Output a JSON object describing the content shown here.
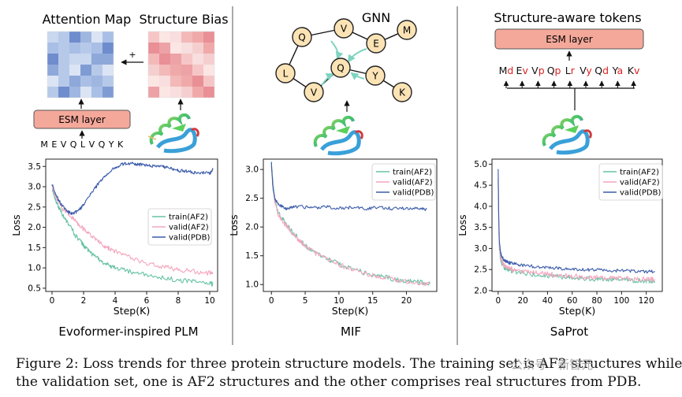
{
  "panels": [
    {
      "diagram": {
        "attention_title": "Attention Map",
        "bias_title": "Structure Bias",
        "plus": "+",
        "layer": "ESM layer",
        "sequence": "M E V Q L V Q Y K"
      },
      "panel_label": "Evoformer-inspired PLM"
    },
    {
      "diagram": {
        "title": "GNN",
        "nodes": [
          "Q",
          "V",
          "E",
          "M",
          "L",
          "Q",
          "Y",
          "V",
          "K"
        ]
      },
      "panel_label": "MIF"
    },
    {
      "diagram": {
        "title": "Structure-aware tokens",
        "layer": "ESM layer",
        "tokens": [
          {
            "aa": "M",
            "ss": "d"
          },
          {
            "aa": "E",
            "ss": "v"
          },
          {
            "aa": "V",
            "ss": "p"
          },
          {
            "aa": "Q",
            "ss": "p"
          },
          {
            "aa": "L",
            "ss": "r"
          },
          {
            "aa": "V",
            "ss": "y"
          },
          {
            "aa": "Q",
            "ss": "d"
          },
          {
            "aa": "Y",
            "ss": "a"
          },
          {
            "aa": "K",
            "ss": "v"
          }
        ]
      },
      "panel_label": "SaProt"
    }
  ],
  "chart_data": [
    {
      "type": "line",
      "xlabel": "Step(K)",
      "ylabel": "Loss",
      "xlim": [
        -0.4,
        10.5
      ],
      "ylim": [
        0.42,
        3.68
      ],
      "xticks": [
        0,
        2,
        4,
        6,
        8,
        10
      ],
      "yticks": [
        0.5,
        1.0,
        1.5,
        2.0,
        2.5,
        3.0,
        3.5
      ],
      "legend_position": "center-right",
      "grid": false,
      "series": [
        {
          "name": "train(AF2)",
          "color": "#66c2a5",
          "x": [
            0,
            0.3,
            0.6,
            1,
            1.5,
            2,
            2.5,
            3,
            3.5,
            4,
            5,
            6,
            7,
            8,
            9,
            10,
            10.2
          ],
          "y": [
            2.95,
            2.6,
            2.35,
            2.1,
            1.8,
            1.55,
            1.35,
            1.2,
            1.08,
            1.0,
            0.9,
            0.82,
            0.76,
            0.7,
            0.66,
            0.62,
            0.6
          ]
        },
        {
          "name": "valid(AF2)",
          "color": "#f4a6bd",
          "x": [
            0,
            0.3,
            0.6,
            1,
            1.5,
            2,
            2.5,
            3,
            3.5,
            4,
            5,
            6,
            7,
            8,
            9,
            10,
            10.2
          ],
          "y": [
            3.0,
            2.7,
            2.5,
            2.35,
            2.15,
            1.95,
            1.78,
            1.62,
            1.5,
            1.4,
            1.25,
            1.12,
            1.03,
            0.96,
            0.91,
            0.87,
            0.86
          ]
        },
        {
          "name": "valid(PDB)",
          "color": "#3b5bab",
          "x": [
            0,
            0.3,
            0.6,
            1,
            1.3,
            1.7,
            2,
            2.5,
            3,
            3.5,
            4,
            4.5,
            5,
            5.5,
            6,
            6.5,
            7,
            7.5,
            8,
            8.5,
            9,
            9.5,
            10,
            10.2
          ],
          "y": [
            3.05,
            2.75,
            2.55,
            2.38,
            2.33,
            2.42,
            2.55,
            2.85,
            3.1,
            3.3,
            3.48,
            3.56,
            3.58,
            3.55,
            3.52,
            3.5,
            3.5,
            3.45,
            3.4,
            3.38,
            3.35,
            3.35,
            3.33,
            3.42
          ]
        }
      ]
    },
    {
      "type": "line",
      "xlabel": "Step(K)",
      "ylabel": "Loss",
      "xlim": [
        -1.2,
        24.5
      ],
      "ylim": [
        0.88,
        3.18
      ],
      "xticks": [
        0,
        5,
        10,
        15,
        20
      ],
      "yticks": [
        1.0,
        1.5,
        2.0,
        2.5,
        3.0
      ],
      "legend_position": "top-right",
      "grid": false,
      "series": [
        {
          "name": "train(AF2)",
          "color": "#66c2a5",
          "x": [
            0,
            0.2,
            0.5,
            1,
            2,
            3,
            4,
            5,
            6,
            8,
            10,
            12,
            14,
            16,
            18,
            20,
            22,
            23.5
          ],
          "y": [
            3.1,
            2.8,
            2.45,
            2.25,
            2.08,
            1.92,
            1.8,
            1.68,
            1.6,
            1.46,
            1.36,
            1.27,
            1.2,
            1.15,
            1.1,
            1.06,
            1.04,
            1.02
          ]
        },
        {
          "name": "valid(AF2)",
          "color": "#f4a6bd",
          "x": [
            0,
            0.2,
            0.5,
            1,
            2,
            3,
            4,
            5,
            6,
            8,
            10,
            12,
            14,
            16,
            18,
            20,
            22,
            23.5
          ],
          "y": [
            3.05,
            2.75,
            2.42,
            2.22,
            2.05,
            1.9,
            1.78,
            1.67,
            1.58,
            1.45,
            1.35,
            1.26,
            1.19,
            1.14,
            1.09,
            1.05,
            1.03,
            1.01
          ]
        },
        {
          "name": "valid(PDB)",
          "color": "#3b5bab",
          "x": [
            0,
            0.2,
            0.5,
            1,
            2,
            3,
            4,
            6,
            8,
            10,
            12,
            14,
            16,
            18,
            20,
            22,
            23
          ],
          "y": [
            3.1,
            2.7,
            2.5,
            2.4,
            2.32,
            2.34,
            2.36,
            2.33,
            2.35,
            2.33,
            2.34,
            2.32,
            2.34,
            2.32,
            2.33,
            2.31,
            2.31
          ]
        }
      ]
    },
    {
      "type": "line",
      "xlabel": "Step(K)",
      "ylabel": "Loss",
      "xlim": [
        -5,
        133
      ],
      "ylim": [
        1.98,
        5.12
      ],
      "xticks": [
        0,
        20,
        40,
        60,
        80,
        100,
        120
      ],
      "yticks": [
        2.0,
        2.5,
        3.0,
        3.5,
        4.0,
        4.5,
        5.0
      ],
      "legend_position": "top-right",
      "grid": false,
      "series": [
        {
          "name": "train(AF2)",
          "color": "#66c2a5",
          "x": [
            0,
            0.5,
            1,
            2,
            3,
            5,
            8,
            12,
            20,
            30,
            40,
            50,
            60,
            70,
            80,
            90,
            100,
            110,
            120,
            127
          ],
          "y": [
            4.6,
            3.5,
            3.0,
            2.75,
            2.65,
            2.55,
            2.5,
            2.46,
            2.42,
            2.38,
            2.35,
            2.33,
            2.31,
            2.29,
            2.27,
            2.26,
            2.25,
            2.24,
            2.23,
            2.22
          ]
        },
        {
          "name": "valid(AF2)",
          "color": "#f4a6bd",
          "x": [
            0,
            0.5,
            1,
            2,
            3,
            5,
            8,
            12,
            20,
            30,
            40,
            50,
            60,
            70,
            80,
            90,
            100,
            110,
            120,
            127
          ],
          "y": [
            4.7,
            3.55,
            3.05,
            2.8,
            2.7,
            2.6,
            2.54,
            2.5,
            2.46,
            2.42,
            2.39,
            2.36,
            2.34,
            2.32,
            2.31,
            2.3,
            2.29,
            2.28,
            2.27,
            2.27
          ]
        },
        {
          "name": "valid(PDB)",
          "color": "#3b5bab",
          "x": [
            0,
            0.5,
            1,
            2,
            3,
            5,
            8,
            12,
            20,
            30,
            40,
            50,
            60,
            70,
            80,
            90,
            100,
            110,
            120,
            127
          ],
          "y": [
            4.9,
            3.7,
            3.15,
            2.9,
            2.8,
            2.72,
            2.67,
            2.64,
            2.6,
            2.57,
            2.55,
            2.53,
            2.51,
            2.5,
            2.49,
            2.48,
            2.47,
            2.46,
            2.45,
            2.45
          ]
        }
      ]
    }
  ],
  "caption": {
    "line1": "Figure 2: Loss trends for three protein structure models. The training set is AF2 structures while in",
    "line2": "the validation set, one is AF2 structures and the other comprises real structures from PDB."
  },
  "watermark": "公众号 · 新智元"
}
